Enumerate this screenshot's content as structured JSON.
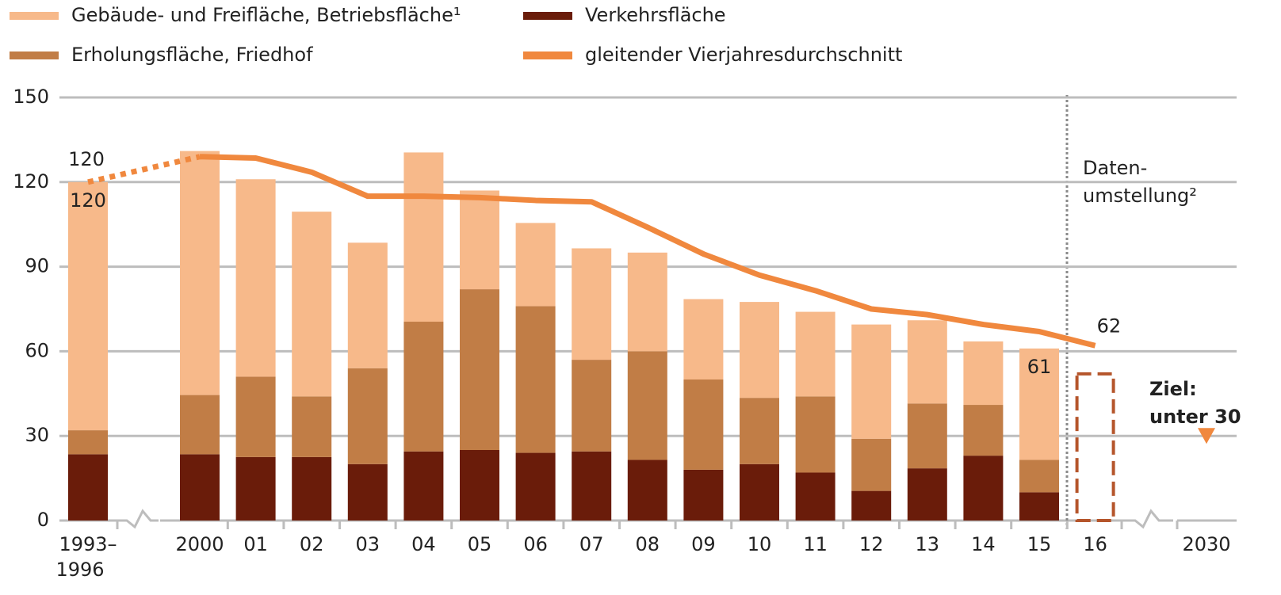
{
  "chart_data": {
    "type": "bar",
    "stacked": true,
    "categories": [
      "1993–1996",
      "2000",
      "01",
      "02",
      "03",
      "04",
      "05",
      "06",
      "07",
      "08",
      "09",
      "10",
      "11",
      "12",
      "13",
      "14",
      "15",
      "16",
      "2030"
    ],
    "series": [
      {
        "name": "Verkehrsfläche",
        "color": "#6a1c0a",
        "values": [
          23.5,
          23.5,
          22.5,
          22.5,
          20,
          24.5,
          25,
          24,
          24.5,
          21.5,
          18,
          20,
          17,
          10.5,
          18.5,
          23,
          10,
          null,
          null
        ]
      },
      {
        "name": "Erholungsfläche, Friedhof",
        "color": "#c17d46",
        "values": [
          8.5,
          21,
          28.5,
          21.5,
          34,
          46,
          57,
          52,
          32.5,
          38.5,
          32,
          23.5,
          27,
          18.5,
          23,
          18,
          11.5,
          null,
          null
        ]
      },
      {
        "name": "Gebäude- und Freifläche, Betriebsfläche¹",
        "color": "#f7b98a",
        "values": [
          88,
          86.5,
          70,
          65.5,
          44.5,
          60,
          35,
          29.5,
          39.5,
          35,
          28.5,
          34,
          30,
          40.5,
          29.5,
          22.5,
          39.5,
          null,
          null
        ]
      },
      {
        "name": "gleitender Vierjahresdurchschnitt",
        "color": "#f0883e",
        "type": "line",
        "dotted_first_segment": true,
        "values": [
          120,
          129,
          128.5,
          123.5,
          115,
          115,
          114.5,
          113.5,
          113,
          104,
          94.5,
          87,
          81.5,
          75,
          73,
          69.5,
          67,
          62,
          null
        ],
        "value_labels": [
          "120",
          null,
          null,
          null,
          null,
          null,
          null,
          null,
          null,
          null,
          null,
          null,
          null,
          null,
          null,
          null,
          null,
          "62",
          null
        ]
      }
    ],
    "total_labels": [
      "120",
      null,
      null,
      null,
      null,
      null,
      null,
      null,
      null,
      null,
      null,
      null,
      null,
      null,
      null,
      null,
      "61",
      null,
      null
    ],
    "placeholder": {
      "category": "16",
      "value": 52,
      "color": "#b5552b"
    },
    "target": {
      "category": "2030",
      "value": 30,
      "color": "#f0883e",
      "label": [
        "Ziel:",
        "unter 30"
      ]
    },
    "annotation": {
      "label": [
        "Daten-",
        "umstellung²"
      ]
    },
    "ylim": [
      0,
      150
    ],
    "yticks": [
      0,
      30,
      60,
      90,
      120,
      150
    ],
    "grid": true
  }
}
